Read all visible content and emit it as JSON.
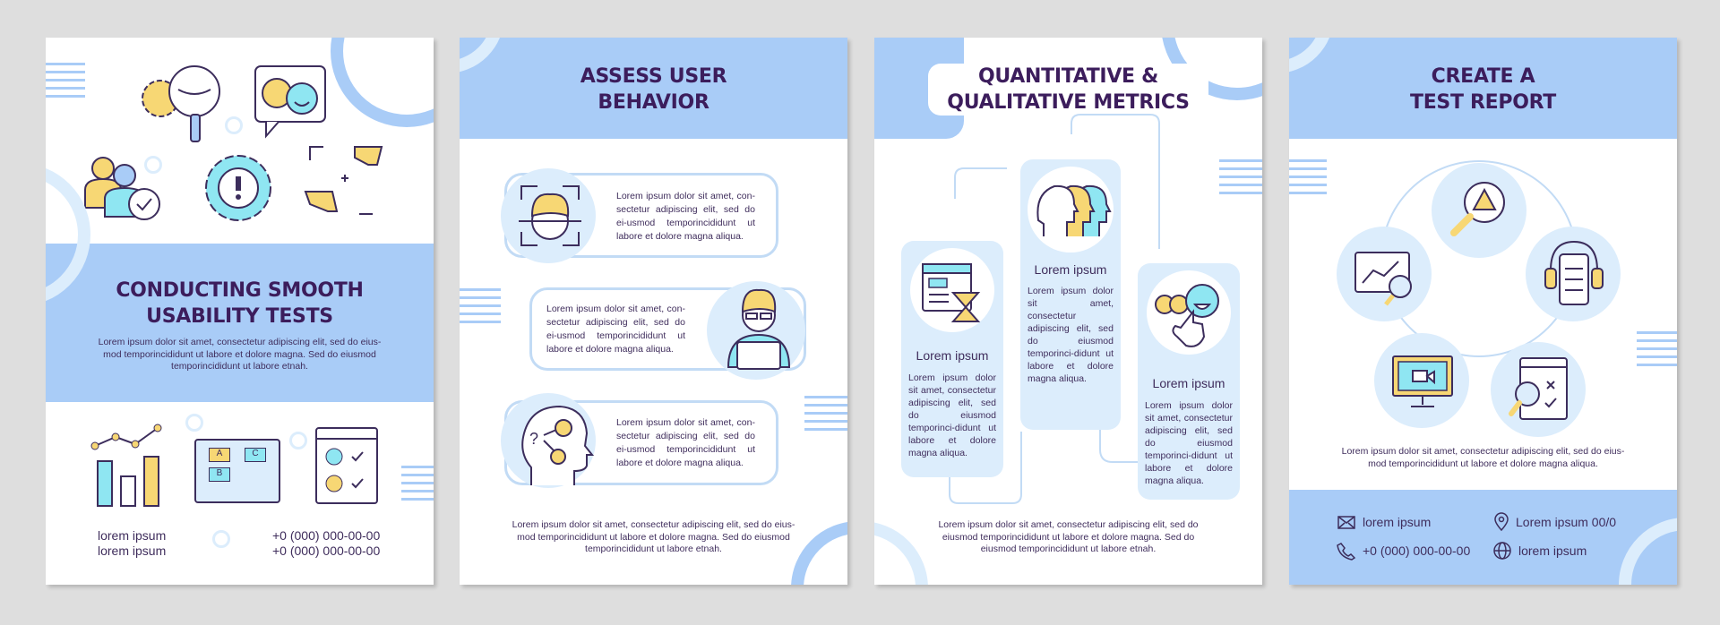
{
  "palette": {
    "background": "#dedede",
    "accent_blue": "#a9ccf7",
    "light_blue": "#dcedfc",
    "title_purple": "#3c1d5c",
    "icon_yellow": "#f7d774",
    "icon_cyan": "#8fe6f2"
  },
  "panel1": {
    "title_line1": "CONDUCTING SMOOTH",
    "title_line2": "USABILITY TESTS",
    "body": "Lorem ipsum dolor sit amet, consectetur adipiscing elit, sed do eius-mod temporincididunt ut labore et dolore magna. Sed do eiusmod temporincididunt ut labore etnah.",
    "contacts_left": [
      "lorem ipsum",
      "lorem ipsum"
    ],
    "contacts_right": [
      "+0 (000) 000-00-00",
      "+0 (000) 000-00-00"
    ],
    "icons": [
      "gear-globe-search-icon",
      "emoji-feedback-icon",
      "users-check-icon",
      "gear-warning-icon",
      "frame-hands-icon",
      "bar-chart-icon",
      "laptop-abc-icon",
      "rating-checklist-icon"
    ],
    "abc_labels": [
      "A",
      "B",
      "C"
    ]
  },
  "panel2": {
    "title_line1": "ASSESS USER",
    "title_line2": "BEHAVIOR",
    "items": [
      {
        "icon": "face-scan-icon",
        "text": "Lorem ipsum dolor sit amet, con-sectetur adipiscing elit, sed do ei-usmod temporincididunt ut labore et dolore magna aliqua."
      },
      {
        "icon": "user-laptop-icon",
        "text": "Lorem ipsum dolor sit amet, con-sectetur adipiscing elit, sed do ei-usmod temporincididunt ut labore et dolore magna aliqua."
      },
      {
        "icon": "head-thinking-icon",
        "text": "Lorem ipsum dolor sit amet, con-sectetur adipiscing elit, sed do ei-usmod temporincididunt ut labore et dolore magna aliqua."
      }
    ],
    "body": "Lorem ipsum dolor sit amet, consectetur adipiscing elit, sed do eius-mod temporincididunt ut labore et dolore magna. Sed do eiusmod temporincididunt ut labore etnah."
  },
  "panel3": {
    "title_line1": "QUANTITATIVE &",
    "title_line2": "QUALITATIVE METRICS",
    "columns": [
      {
        "icon": "window-hourglass-icon",
        "heading": "Lorem ipsum",
        "text": "Lorem ipsum dolor sit amet, consectetur adipiscing elit, sed do eiusmod temporinci-didunt ut labore et dolore magna aliqua."
      },
      {
        "icon": "heads-profile-icon",
        "heading": "Lorem ipsum",
        "text": "Lorem ipsum dolor sit amet, consectetur adipiscing elit, sed do eiusmod temporinci-didunt ut labore et dolore magna aliqua."
      },
      {
        "icon": "emoji-rating-hand-icon",
        "heading": "Lorem ipsum",
        "text": "Lorem ipsum dolor sit amet, consectetur adipiscing elit, sed do eiusmod temporinci-didunt ut labore et dolore magna aliqua."
      }
    ],
    "body": "Lorem ipsum dolor sit amet, consectetur adipiscing elit, sed do eiusmod temporincididunt ut labore et dolore magna. Sed do eiusmod temporincididunt ut labore etnah."
  },
  "panel4": {
    "title_line1": "CREATE A",
    "title_line2": "TEST REPORT",
    "icons": [
      "magnifier-warning-icon",
      "chart-magnifier-icon",
      "phone-headphones-icon",
      "monitor-video-icon",
      "checklist-magnifier-icon"
    ],
    "body": "Lorem ipsum dolor sit amet, consectetur adipiscing elit, sed do eius-mod temporincididunt ut labore et dolore magna aliqua.",
    "contacts": [
      {
        "icon": "envelope-icon",
        "text": "lorem ipsum"
      },
      {
        "icon": "location-pin-icon",
        "text": "Lorem ipsum 00/0"
      },
      {
        "icon": "phone-icon",
        "text": "+0 (000) 000-00-00"
      },
      {
        "icon": "globe-icon",
        "text": "lorem ipsum"
      }
    ]
  }
}
